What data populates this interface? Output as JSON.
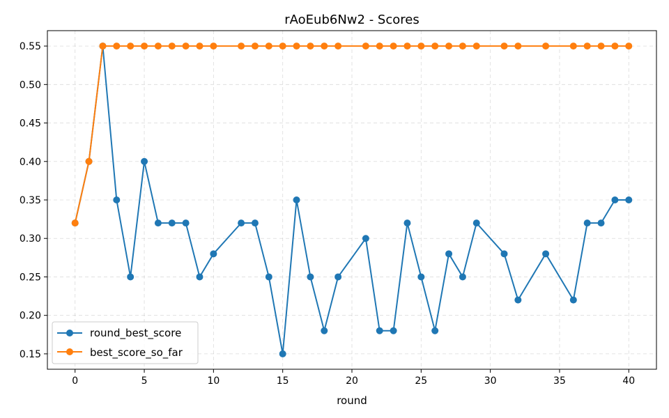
{
  "chart_data": {
    "type": "line",
    "title": "rAoEub6Nw2 - Scores",
    "xlabel": "round",
    "ylabel": "",
    "xlim": [
      -2,
      42
    ],
    "ylim": [
      0.13,
      0.57
    ],
    "xticks": [
      0,
      5,
      10,
      15,
      20,
      25,
      30,
      35,
      40
    ],
    "yticks": [
      0.15,
      0.2,
      0.25,
      0.3,
      0.35,
      0.4,
      0.45,
      0.5,
      0.55
    ],
    "grid": true,
    "legend_position": "lower-left",
    "series": [
      {
        "name": "round_best_score",
        "color": "#1f77b4",
        "x": [
          0,
          1,
          2,
          3,
          4,
          5,
          6,
          7,
          8,
          9,
          10,
          12,
          13,
          14,
          15,
          16,
          17,
          18,
          19,
          21,
          22,
          23,
          24,
          25,
          26,
          27,
          28,
          29,
          31,
          32,
          34,
          36,
          37,
          38,
          39,
          40
        ],
        "y": [
          0.32,
          0.4,
          0.55,
          0.35,
          0.25,
          0.4,
          0.32,
          0.32,
          0.32,
          0.25,
          0.28,
          0.32,
          0.32,
          0.25,
          0.15,
          0.35,
          0.25,
          0.18,
          0.25,
          0.3,
          0.18,
          0.18,
          0.32,
          0.25,
          0.18,
          0.28,
          0.25,
          0.32,
          0.28,
          0.22,
          0.28,
          0.22,
          0.32,
          0.32,
          0.35,
          0.35
        ]
      },
      {
        "name": "best_score_so_far",
        "color": "#ff7f0e",
        "x": [
          0,
          1,
          2,
          3,
          4,
          5,
          6,
          7,
          8,
          9,
          10,
          12,
          13,
          14,
          15,
          16,
          17,
          18,
          19,
          21,
          22,
          23,
          24,
          25,
          26,
          27,
          28,
          29,
          31,
          32,
          34,
          36,
          37,
          38,
          39,
          40
        ],
        "y": [
          0.32,
          0.4,
          0.55,
          0.55,
          0.55,
          0.55,
          0.55,
          0.55,
          0.55,
          0.55,
          0.55,
          0.55,
          0.55,
          0.55,
          0.55,
          0.55,
          0.55,
          0.55,
          0.55,
          0.55,
          0.55,
          0.55,
          0.55,
          0.55,
          0.55,
          0.55,
          0.55,
          0.55,
          0.55,
          0.55,
          0.55,
          0.55,
          0.55,
          0.55,
          0.55,
          0.55
        ]
      }
    ]
  }
}
